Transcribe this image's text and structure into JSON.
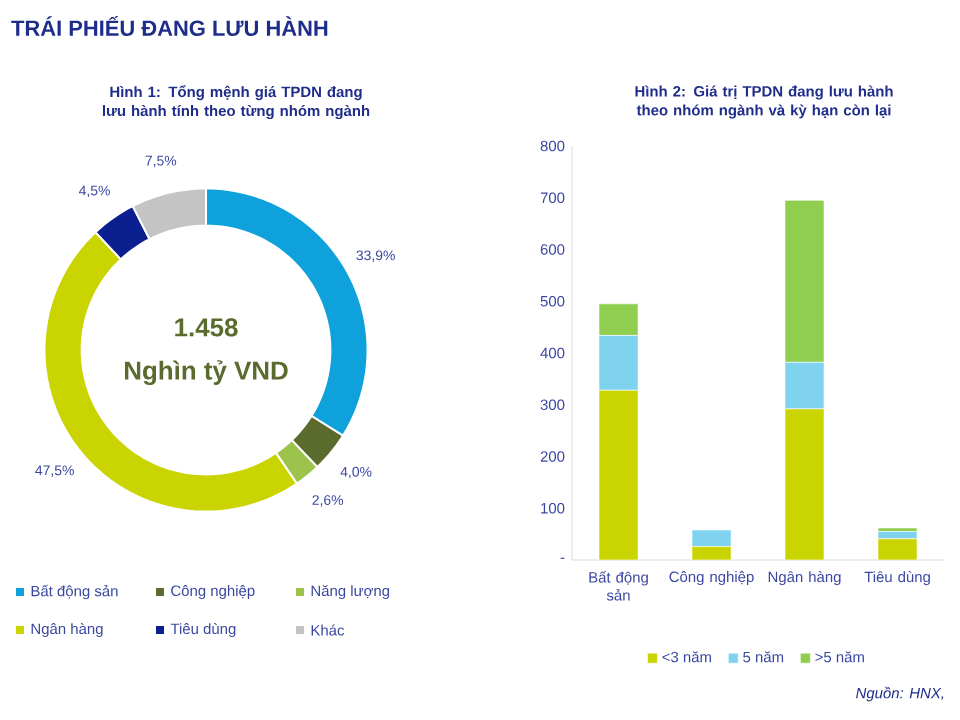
{
  "chart_data": [
    {
      "type": "donut",
      "title": "Hình 1: Tổng mệnh giá TPDN đang lưu hành tính theo từng nhóm ngành",
      "categories": [
        "Bất động sản",
        "Công nghiệp",
        "Năng lượng",
        "Ngân hàng",
        "Tiêu dùng",
        "Khác"
      ],
      "values": [
        33.9,
        4.0,
        2.6,
        47.5,
        4.5,
        7.5
      ],
      "value_labels": [
        "33,9%",
        "4,0%",
        "2,6%",
        "47,5%",
        "4,5%",
        "7,5%"
      ],
      "colors": [
        "#0ea1db",
        "#5b6b2d",
        "#9cc44c",
        "#cad400",
        "#0b1f8f",
        "#c4c4c4"
      ],
      "legend": "bottom",
      "annotations": [
        "TRÁI PHIẾU ĐANG LƯU HÀNH",
        "1.458",
        "Nghìn tỷ VND"
      ]
    },
    {
      "type": "bar",
      "title": "Hình 2: Giá trị TPDN đang lưu hành theo nhóm ngành và kỳ hạn còn lại",
      "categories": [
        "Bất động sản",
        "Công nghiệp",
        "Ngân hàng",
        "Tiêu dùng"
      ],
      "stacked": true,
      "series": [
        {
          "name": "<3 năm",
          "color": "#cad400",
          "values": [
            328,
            26,
            292,
            41
          ]
        },
        {
          "name": "5 năm",
          "color": "#7fd3ef",
          "values": [
            106,
            32,
            90,
            14
          ]
        },
        {
          "name": ">5 năm",
          "color": "#8fce4f",
          "values": [
            61,
            0,
            313,
            7
          ]
        }
      ],
      "ylim": [
        0,
        800
      ],
      "yticks": [
        {
          "value": 0,
          "label": "-"
        },
        100,
        200,
        300,
        400,
        500,
        600,
        700,
        800
      ],
      "legend": "bottom",
      "annotations": [
        "Nguồn: HNX,"
      ]
    }
  ]
}
